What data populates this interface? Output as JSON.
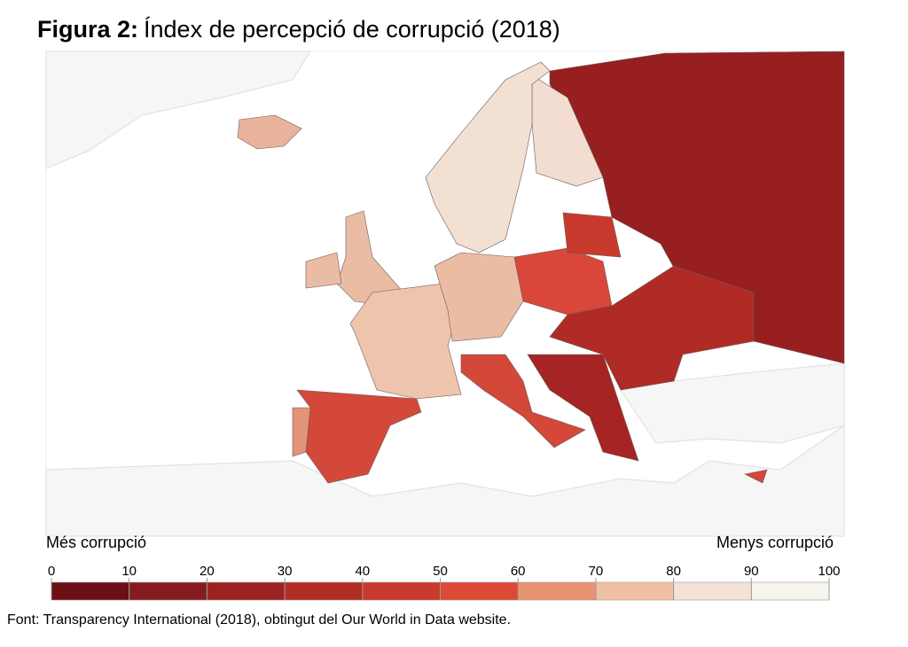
{
  "header": {
    "title_prefix": "Figura 2:",
    "title": "Índex de percepció de corrupció (2018)"
  },
  "legend": {
    "low_label": "Més corrupció",
    "high_label": "Menys corrupció",
    "ticks": [
      0,
      10,
      20,
      30,
      40,
      50,
      60,
      70,
      80,
      90,
      100
    ],
    "colors": [
      "#6b0f14",
      "#861b1d",
      "#9c2222",
      "#b22c26",
      "#c8392e",
      "#dc4a36",
      "#e99373",
      "#efbfa6",
      "#f5e2d6",
      "#f7f3ee"
    ]
  },
  "source": "Font: Transparency International (2018), obtingut del Our World in Data website."
}
